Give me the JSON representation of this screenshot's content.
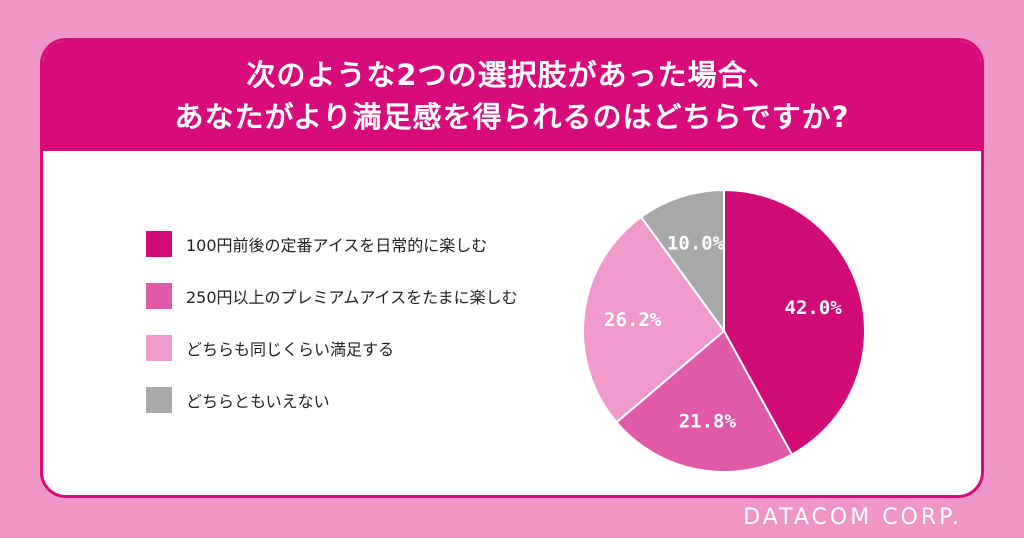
{
  "title": {
    "line1": "次のような2つの選択肢があった場合、",
    "line2": "あなたがより満足感を得られるのはどちらですか?"
  },
  "brand": "DATACOM CORP.",
  "colors": {
    "background": "#ef96c6",
    "accent": "#d80b7a"
  },
  "chart_data": {
    "type": "pie",
    "title": "次のような2つの選択肢があった場合、あなたがより満足感を得られるのはどちらですか?",
    "legend_position": "left",
    "slices": [
      {
        "label": "100円前後の定番アイスを日常的に楽しむ",
        "value": 42.0,
        "display": "42.0%",
        "color": "#d10c77"
      },
      {
        "label": "250円以上のプレミアムアイスをたまに楽しむ",
        "value": 21.8,
        "display": "21.8%",
        "color": "#e15aa8"
      },
      {
        "label": "どちらも同じくらい満足する",
        "value": 26.2,
        "display": "26.2%",
        "color": "#f09acb"
      },
      {
        "label": "どちらともいえない",
        "value": 10.0,
        "display": "10.0%",
        "color": "#a8a8a8"
      }
    ]
  }
}
